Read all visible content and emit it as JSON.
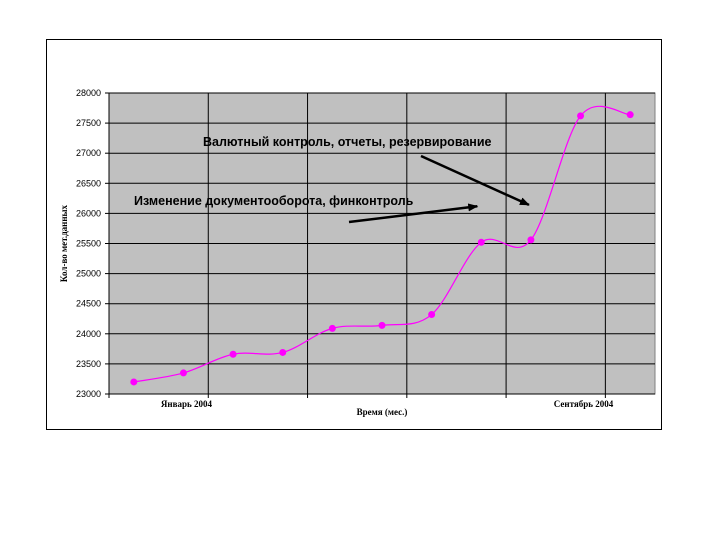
{
  "chart_data": {
    "type": "line",
    "xlabel": "Время (мес.)",
    "ylabel": "Кол-во мет.данных",
    "ylim": [
      23000,
      28000
    ],
    "yticks": [
      23000,
      23500,
      24000,
      24500,
      25000,
      25500,
      26000,
      26500,
      27000,
      27500,
      28000
    ],
    "x_tick_labels": [
      {
        "index": 1,
        "label": "Январь 2004"
      },
      {
        "index": 9,
        "label": "Сентябрь 2004"
      }
    ],
    "grid": true,
    "legend": "none",
    "series": [
      {
        "values": [
          23200,
          23350,
          23660,
          23690,
          24090,
          24140,
          24320,
          25520,
          25560,
          27620,
          27640
        ],
        "color": "#ff00ff"
      }
    ],
    "annotations": [
      {
        "text": "Валютный контроль, отчеты, резервирование",
        "arrow_to_index": 8
      },
      {
        "text": "Изменение документооборота, финконтроль",
        "arrow_to_index": 7
      }
    ],
    "plot_background": "#c0c0c0"
  }
}
